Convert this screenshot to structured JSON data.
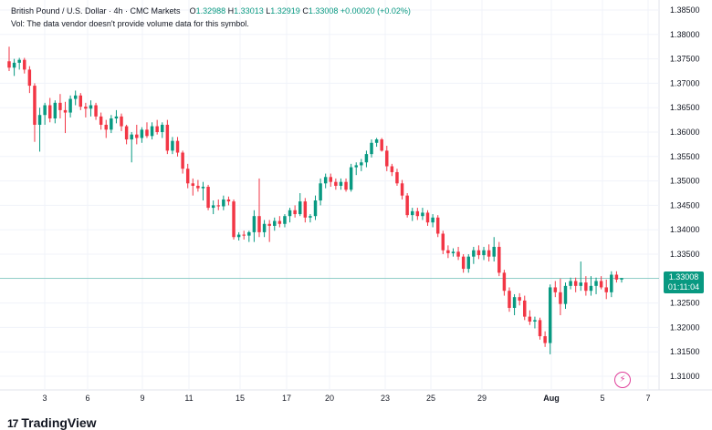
{
  "header": {
    "symbol": "British Pound / U.S. Dollar · 4h · CMC Markets",
    "open_label": "O",
    "open": "1.32988",
    "high_label": "H",
    "high": "1.33013",
    "low_label": "L",
    "low": "1.32919",
    "close_label": "C",
    "close": "1.33008",
    "change": "+0.00020 (+0.02%)"
  },
  "volume_note": "Vol: The data vendor doesn't provide volume data for this symbol.",
  "price_tag": {
    "price": "1.33008",
    "countdown": "01:11:04"
  },
  "logo": {
    "mark": "17",
    "text": "TradingView"
  },
  "colors": {
    "up": "#089981",
    "down": "#f23645",
    "grid": "#f0f3fa",
    "axis_text": "#131722",
    "price_line": "#089981",
    "bolt": "#e0409a"
  },
  "icons": {
    "bolt": "lightning-icon"
  },
  "chart_data": {
    "type": "candlestick",
    "y_ticks": [
      "1.38500",
      "1.38000",
      "1.37500",
      "1.37000",
      "1.36500",
      "1.36000",
      "1.35500",
      "1.35000",
      "1.34500",
      "1.34000",
      "1.33500",
      "1.33000",
      "1.32500",
      "1.32000",
      "1.31500",
      "1.31000"
    ],
    "x_ticks": [
      "3",
      "6",
      "9",
      "11",
      "15",
      "17",
      "20",
      "23",
      "25",
      "29",
      "Aug",
      "5",
      "7"
    ],
    "ylim": [
      1.308,
      1.386
    ],
    "last_price": 1.33008,
    "candles": [
      [
        1.3745,
        1.3775,
        1.3725,
        1.3732
      ],
      [
        1.3732,
        1.375,
        1.3715,
        1.3742
      ],
      [
        1.3742,
        1.3752,
        1.3728,
        1.3748
      ],
      [
        1.3748,
        1.3752,
        1.372,
        1.3728
      ],
      [
        1.3728,
        1.3735,
        1.368,
        1.3695
      ],
      [
        1.3695,
        1.37,
        1.358,
        1.3615
      ],
      [
        1.3615,
        1.365,
        1.356,
        1.3635
      ],
      [
        1.3635,
        1.366,
        1.3615,
        1.3655
      ],
      [
        1.3655,
        1.367,
        1.362,
        1.3628
      ],
      [
        1.3628,
        1.3665,
        1.3618,
        1.366
      ],
      [
        1.366,
        1.3678,
        1.3628,
        1.3645
      ],
      [
        1.3645,
        1.3662,
        1.3598,
        1.364
      ],
      [
        1.364,
        1.3675,
        1.363,
        1.3668
      ],
      [
        1.3668,
        1.3685,
        1.3655,
        1.3675
      ],
      [
        1.3675,
        1.368,
        1.3645,
        1.3652
      ],
      [
        1.3652,
        1.366,
        1.363,
        1.3648
      ],
      [
        1.3648,
        1.3665,
        1.3632,
        1.3655
      ],
      [
        1.3655,
        1.366,
        1.3625,
        1.3632
      ],
      [
        1.3632,
        1.364,
        1.3605,
        1.3615
      ],
      [
        1.3615,
        1.3625,
        1.3588,
        1.3605
      ],
      [
        1.3605,
        1.3635,
        1.3598,
        1.3628
      ],
      [
        1.3628,
        1.3645,
        1.3618,
        1.3632
      ],
      [
        1.3632,
        1.3638,
        1.3602,
        1.3612
      ],
      [
        1.3612,
        1.3615,
        1.3575,
        1.3585
      ],
      [
        1.3585,
        1.36,
        1.3538,
        1.3595
      ],
      [
        1.3595,
        1.3615,
        1.3575,
        1.3588
      ],
      [
        1.3588,
        1.361,
        1.3578,
        1.3605
      ],
      [
        1.3605,
        1.362,
        1.3588,
        1.3592
      ],
      [
        1.3592,
        1.362,
        1.3585,
        1.3612
      ],
      [
        1.3612,
        1.3625,
        1.3595,
        1.36
      ],
      [
        1.36,
        1.362,
        1.3588,
        1.3615
      ],
      [
        1.3615,
        1.3625,
        1.3555,
        1.3562
      ],
      [
        1.3562,
        1.359,
        1.3555,
        1.3582
      ],
      [
        1.3582,
        1.359,
        1.355,
        1.3558
      ],
      [
        1.3558,
        1.3562,
        1.3515,
        1.3525
      ],
      [
        1.3525,
        1.3535,
        1.3485,
        1.3495
      ],
      [
        1.3495,
        1.3505,
        1.347,
        1.349
      ],
      [
        1.349,
        1.3502,
        1.3478,
        1.3485
      ],
      [
        1.3485,
        1.3498,
        1.346,
        1.3488
      ],
      [
        1.3488,
        1.3492,
        1.344,
        1.3445
      ],
      [
        1.3445,
        1.346,
        1.3432,
        1.345
      ],
      [
        1.345,
        1.3462,
        1.344,
        1.3448
      ],
      [
        1.3448,
        1.347,
        1.344,
        1.3462
      ],
      [
        1.3462,
        1.3468,
        1.345,
        1.3458
      ],
      [
        1.3458,
        1.3462,
        1.338,
        1.3385
      ],
      [
        1.3385,
        1.3395,
        1.3378,
        1.339
      ],
      [
        1.339,
        1.3398,
        1.338,
        1.3388
      ],
      [
        1.3388,
        1.3398,
        1.3375,
        1.3395
      ],
      [
        1.3395,
        1.344,
        1.3375,
        1.3428
      ],
      [
        1.3428,
        1.3505,
        1.3385,
        1.3395
      ],
      [
        1.3395,
        1.342,
        1.3385,
        1.3412
      ],
      [
        1.3412,
        1.342,
        1.3375,
        1.3408
      ],
      [
        1.3408,
        1.3425,
        1.3398,
        1.3418
      ],
      [
        1.3418,
        1.3428,
        1.3405,
        1.3412
      ],
      [
        1.3412,
        1.3432,
        1.3405,
        1.3428
      ],
      [
        1.3428,
        1.3445,
        1.3415,
        1.344
      ],
      [
        1.344,
        1.345,
        1.3425,
        1.3432
      ],
      [
        1.3432,
        1.3475,
        1.3428,
        1.3458
      ],
      [
        1.3458,
        1.3465,
        1.3415,
        1.3425
      ],
      [
        1.3425,
        1.3432,
        1.3415,
        1.3428
      ],
      [
        1.3428,
        1.347,
        1.342,
        1.346
      ],
      [
        1.346,
        1.3505,
        1.345,
        1.3495
      ],
      [
        1.3495,
        1.3515,
        1.3485,
        1.3508
      ],
      [
        1.3508,
        1.3515,
        1.3488,
        1.3498
      ],
      [
        1.3498,
        1.3505,
        1.3482,
        1.349
      ],
      [
        1.349,
        1.3505,
        1.3482,
        1.3498
      ],
      [
        1.3498,
        1.3505,
        1.3478,
        1.3482
      ],
      [
        1.3482,
        1.3535,
        1.3478,
        1.3528
      ],
      [
        1.3528,
        1.3538,
        1.3512,
        1.3532
      ],
      [
        1.3532,
        1.3545,
        1.352,
        1.3538
      ],
      [
        1.3538,
        1.3562,
        1.3528,
        1.3555
      ],
      [
        1.3555,
        1.3585,
        1.3548,
        1.3578
      ],
      [
        1.3578,
        1.3588,
        1.357,
        1.3585
      ],
      [
        1.3585,
        1.3588,
        1.356,
        1.3562
      ],
      [
        1.3562,
        1.3572,
        1.352,
        1.353
      ],
      [
        1.353,
        1.3535,
        1.351,
        1.3518
      ],
      [
        1.3518,
        1.3525,
        1.349,
        1.3495
      ],
      [
        1.3495,
        1.3502,
        1.3462,
        1.347
      ],
      [
        1.347,
        1.3475,
        1.3425,
        1.343
      ],
      [
        1.343,
        1.3445,
        1.3418,
        1.3438
      ],
      [
        1.3438,
        1.3445,
        1.342,
        1.3428
      ],
      [
        1.3428,
        1.3445,
        1.342,
        1.3435
      ],
      [
        1.3435,
        1.344,
        1.3408,
        1.3415
      ],
      [
        1.3415,
        1.3432,
        1.3405,
        1.3425
      ],
      [
        1.3425,
        1.343,
        1.3385,
        1.3392
      ],
      [
        1.3392,
        1.3398,
        1.335,
        1.3358
      ],
      [
        1.3358,
        1.3368,
        1.3342,
        1.3352
      ],
      [
        1.3352,
        1.3362,
        1.3345,
        1.3355
      ],
      [
        1.3355,
        1.3365,
        1.3338,
        1.3345
      ],
      [
        1.3345,
        1.335,
        1.3312,
        1.332
      ],
      [
        1.332,
        1.335,
        1.3312,
        1.3345
      ],
      [
        1.3345,
        1.3365,
        1.333,
        1.3358
      ],
      [
        1.3358,
        1.3368,
        1.334,
        1.3348
      ],
      [
        1.3348,
        1.3365,
        1.3338,
        1.3358
      ],
      [
        1.3358,
        1.337,
        1.3335,
        1.3345
      ],
      [
        1.3345,
        1.3385,
        1.3335,
        1.3365
      ],
      [
        1.3365,
        1.3375,
        1.3305,
        1.3312
      ],
      [
        1.3312,
        1.3318,
        1.3265,
        1.3275
      ],
      [
        1.3275,
        1.3282,
        1.3232,
        1.324
      ],
      [
        1.324,
        1.3268,
        1.3225,
        1.3262
      ],
      [
        1.3262,
        1.327,
        1.3245,
        1.3255
      ],
      [
        1.3255,
        1.3265,
        1.3215,
        1.3222
      ],
      [
        1.3222,
        1.3235,
        1.3205,
        1.3212
      ],
      [
        1.3212,
        1.3222,
        1.3198,
        1.3215
      ],
      [
        1.3215,
        1.322,
        1.3175,
        1.3182
      ],
      [
        1.3182,
        1.3192,
        1.316,
        1.3168
      ],
      [
        1.3168,
        1.3288,
        1.3145,
        1.3282
      ],
      [
        1.3282,
        1.3295,
        1.3262,
        1.3272
      ],
      [
        1.3272,
        1.33,
        1.3225,
        1.3248
      ],
      [
        1.3248,
        1.3292,
        1.3238,
        1.3285
      ],
      [
        1.3285,
        1.3302,
        1.3278,
        1.3295
      ],
      [
        1.3295,
        1.3302,
        1.3272,
        1.3285
      ],
      [
        1.3285,
        1.3335,
        1.3275,
        1.3292
      ],
      [
        1.3292,
        1.3305,
        1.3265,
        1.3275
      ],
      [
        1.3275,
        1.3305,
        1.3265,
        1.3285
      ],
      [
        1.3285,
        1.3302,
        1.3268,
        1.3295
      ],
      [
        1.3295,
        1.3305,
        1.3278,
        1.3282
      ],
      [
        1.3282,
        1.3298,
        1.3258,
        1.3272
      ],
      [
        1.3272,
        1.3315,
        1.3262,
        1.3308
      ],
      [
        1.3308,
        1.3315,
        1.3292,
        1.3298
      ],
      [
        1.3298,
        1.3301,
        1.3292,
        1.3301
      ]
    ]
  }
}
